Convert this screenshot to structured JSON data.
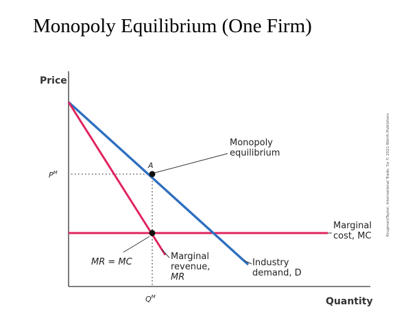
{
  "title": "Monopoly Equilibrium (One Firm)",
  "axes": {
    "y_label": "Price",
    "x_label": "Quantity",
    "p_tick": "P",
    "p_sup": "M",
    "q_tick": "Q",
    "q_sup": "M"
  },
  "curves": {
    "demand": {
      "line1": "Industry",
      "line2": "demand, D",
      "color": "#2e6fc0"
    },
    "mr": {
      "line1": "Marginal",
      "line2": "revenue,",
      "line3": "MR",
      "color": "#e0245e"
    },
    "mc": {
      "line1": "Marginal",
      "line2": "cost, MC",
      "color": "#e0245e"
    }
  },
  "annotations": {
    "equilibrium_line1": "Monopoly",
    "equilibrium_line2": "equilibrium",
    "point_a": "A",
    "mr_equals_mc": "MR = MC"
  },
  "credit": "Krugman/Taylor, International Trade, 5e © 2021 Worth Publishers"
}
